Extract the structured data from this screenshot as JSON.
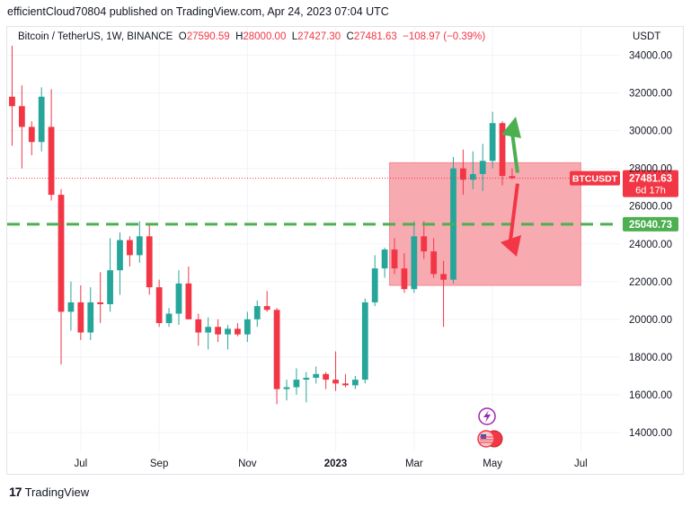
{
  "header": {
    "published": "efficientCloud70804 published on TradingView.com, Apr 24, 2023 07:04 UTC"
  },
  "legend": {
    "symbol": "Bitcoin / TetherUS, 1W, BINANCE",
    "o_label": "O",
    "o": "27590.59",
    "h_label": "H",
    "h": "28000.00",
    "l_label": "L",
    "l": "27427.30",
    "c_label": "C",
    "c": "27481.63",
    "change": "−108.97 (−0.39%)"
  },
  "currency": "USDT",
  "footer": {
    "brand": "TradingView",
    "brand_mark": "17"
  },
  "badges": {
    "symbol": "BTCUSDT",
    "price": "27481.63",
    "countdown": "6d 17h",
    "level": "25040.73"
  },
  "colors": {
    "up": "#26a69a",
    "down": "#f23645",
    "zone": "#f7a1a8",
    "level_line": "#4caf50",
    "arrow_up": "#4caf50",
    "arrow_down": "#f23645"
  },
  "icons": [
    "lightning-icon",
    "us-flag-icon"
  ],
  "chart_data": {
    "type": "candlestick",
    "title": "Bitcoin / TetherUS, 1W, BINANCE",
    "y_axis_ticks": [
      14000,
      16000,
      18000,
      20000,
      22000,
      24000,
      26000,
      28000,
      30000,
      32000,
      34000
    ],
    "y_tick_labels": [
      "14000.00",
      "16000.00",
      "18000.00",
      "20000.00",
      "22000.00",
      "24000.00",
      "26000.00",
      "28000.00",
      "30000.00",
      "32000.00",
      "34000.00"
    ],
    "ylim": [
      13000,
      35500
    ],
    "x_tick_labels": [
      {
        "label": "Jul",
        "index": 7
      },
      {
        "label": "Sep",
        "index": 15
      },
      {
        "label": "Nov",
        "index": 24
      },
      {
        "label": "2023",
        "index": 33
      },
      {
        "label": "Mar",
        "index": 41
      },
      {
        "label": "May",
        "index": 49
      },
      {
        "label": "Jul",
        "index": 58
      }
    ],
    "xlim": [
      -0.5,
      62
    ],
    "candles": [
      {
        "o": 31800,
        "h": 34500,
        "l": 29200,
        "c": 31300
      },
      {
        "o": 31300,
        "h": 32400,
        "l": 28000,
        "c": 30200
      },
      {
        "o": 30200,
        "h": 30500,
        "l": 28700,
        "c": 29400
      },
      {
        "o": 29400,
        "h": 32300,
        "l": 28900,
        "c": 31800
      },
      {
        "o": 30200,
        "h": 32200,
        "l": 26300,
        "c": 26600
      },
      {
        "o": 26600,
        "h": 26900,
        "l": 17600,
        "c": 20400
      },
      {
        "o": 20400,
        "h": 22000,
        "l": 19400,
        "c": 20900
      },
      {
        "o": 20900,
        "h": 21800,
        "l": 18900,
        "c": 19300
      },
      {
        "o": 19300,
        "h": 21700,
        "l": 18900,
        "c": 20900
      },
      {
        "o": 20900,
        "h": 22500,
        "l": 19800,
        "c": 20800
      },
      {
        "o": 20800,
        "h": 24300,
        "l": 20400,
        "c": 22600
      },
      {
        "o": 22600,
        "h": 24600,
        "l": 21300,
        "c": 24200
      },
      {
        "o": 24200,
        "h": 24400,
        "l": 22800,
        "c": 23400
      },
      {
        "o": 23400,
        "h": 25200,
        "l": 23000,
        "c": 24400
      },
      {
        "o": 24400,
        "h": 25100,
        "l": 21300,
        "c": 21700
      },
      {
        "o": 21700,
        "h": 22100,
        "l": 19600,
        "c": 19800
      },
      {
        "o": 19800,
        "h": 20600,
        "l": 19600,
        "c": 20300
      },
      {
        "o": 20300,
        "h": 22600,
        "l": 19700,
        "c": 21900
      },
      {
        "o": 21900,
        "h": 22800,
        "l": 20200,
        "c": 20000
      },
      {
        "o": 20000,
        "h": 20300,
        "l": 18600,
        "c": 19300
      },
      {
        "o": 19300,
        "h": 20100,
        "l": 18400,
        "c": 19600
      },
      {
        "o": 19600,
        "h": 20000,
        "l": 18800,
        "c": 19200
      },
      {
        "o": 19200,
        "h": 19700,
        "l": 18400,
        "c": 19500
      },
      {
        "o": 19500,
        "h": 19800,
        "l": 19100,
        "c": 19200
      },
      {
        "o": 19200,
        "h": 20400,
        "l": 18800,
        "c": 20000
      },
      {
        "o": 20000,
        "h": 21000,
        "l": 19600,
        "c": 20700
      },
      {
        "o": 20700,
        "h": 21500,
        "l": 20400,
        "c": 20500
      },
      {
        "o": 20500,
        "h": 20600,
        "l": 15500,
        "c": 16300
      },
      {
        "o": 16300,
        "h": 16800,
        "l": 15700,
        "c": 16400
      },
      {
        "o": 16400,
        "h": 17400,
        "l": 16000,
        "c": 16800
      },
      {
        "o": 16800,
        "h": 17200,
        "l": 15600,
        "c": 16900
      },
      {
        "o": 16900,
        "h": 17500,
        "l": 16600,
        "c": 17100
      },
      {
        "o": 17100,
        "h": 17200,
        "l": 16300,
        "c": 16800
      },
      {
        "o": 16800,
        "h": 18300,
        "l": 16200,
        "c": 16600
      },
      {
        "o": 16600,
        "h": 17100,
        "l": 16400,
        "c": 16500
      },
      {
        "o": 16500,
        "h": 17000,
        "l": 16300,
        "c": 16800
      },
      {
        "o": 16800,
        "h": 21100,
        "l": 16600,
        "c": 20900
      },
      {
        "o": 20900,
        "h": 23400,
        "l": 20700,
        "c": 22700
      },
      {
        "o": 22700,
        "h": 23800,
        "l": 22200,
        "c": 23700
      },
      {
        "o": 23700,
        "h": 24300,
        "l": 22400,
        "c": 22700
      },
      {
        "o": 22700,
        "h": 23500,
        "l": 21400,
        "c": 21600
      },
      {
        "o": 21600,
        "h": 25200,
        "l": 21400,
        "c": 24400
      },
      {
        "o": 24400,
        "h": 25200,
        "l": 23200,
        "c": 23600
      },
      {
        "o": 23600,
        "h": 24300,
        "l": 22200,
        "c": 22400
      },
      {
        "o": 22400,
        "h": 23100,
        "l": 19600,
        "c": 22100
      },
      {
        "o": 22100,
        "h": 28600,
        "l": 21900,
        "c": 28000
      },
      {
        "o": 28000,
        "h": 29000,
        "l": 26600,
        "c": 27400
      },
      {
        "o": 27400,
        "h": 28900,
        "l": 26900,
        "c": 27700
      },
      {
        "o": 27700,
        "h": 29300,
        "l": 26800,
        "c": 28400
      },
      {
        "o": 28400,
        "h": 31000,
        "l": 28000,
        "c": 30400
      },
      {
        "o": 30400,
        "h": 30500,
        "l": 27100,
        "c": 27600
      },
      {
        "o": 27590.59,
        "h": 28000,
        "l": 27427.3,
        "c": 27481.63
      }
    ],
    "zone": {
      "y_top": 28300,
      "y_bottom": 21800,
      "index_from": 38.5,
      "index_to": 58
    },
    "level": 25040.73,
    "last_price": 27481.63
  }
}
